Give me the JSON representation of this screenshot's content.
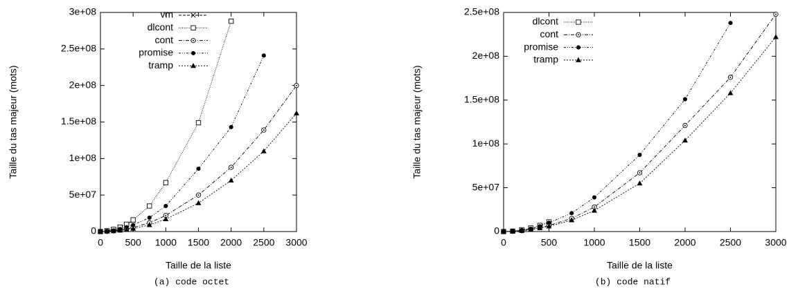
{
  "chart_data": [
    {
      "type": "line",
      "caption": "(a) code octet",
      "x_label": "Taille de la liste",
      "y_label": "Taille du tas majeur (mots)",
      "x": [
        0,
        100,
        200,
        300,
        400,
        500,
        750,
        1000,
        1500,
        2000,
        2500,
        3000
      ],
      "xlim": [
        0,
        3000
      ],
      "xticks": [
        0,
        500,
        1000,
        1500,
        2000,
        2500,
        3000
      ],
      "ylim": [
        0,
        300000000
      ],
      "yticks": [
        0,
        {
          "value": 50000000,
          "label": "5e+07"
        },
        {
          "value": 100000000,
          "label": "1e+08"
        },
        {
          "value": 150000000,
          "label": "1.5e+08"
        },
        {
          "value": 200000000,
          "label": "2e+08"
        },
        {
          "value": 250000000,
          "label": "2.5e+08"
        },
        {
          "value": 300000000,
          "label": "3e+08"
        }
      ],
      "legend": "upper left",
      "series": [
        {
          "name": "vm",
          "color": "#000000",
          "marker": "x",
          "values": [
            0,
            1000000,
            3000000,
            6000000,
            10000000,
            15000000,
            null,
            null,
            null,
            null,
            null,
            null
          ]
        },
        {
          "name": "dlcont",
          "color": "#000000",
          "marker": "square",
          "values": [
            0,
            1000000,
            3000000,
            6000000,
            10000000,
            16000000,
            35000000,
            67000000,
            149000000,
            288000000,
            null,
            null
          ]
        },
        {
          "name": "cont",
          "color": "#000000",
          "marker": "dotcircle",
          "values": [
            0,
            200000,
            900000,
            2000000,
            3500000,
            5500000,
            12000000,
            22000000,
            50000000,
            88000000,
            139000000,
            200000000
          ]
        },
        {
          "name": "promise",
          "color": "#000000",
          "marker": "dot",
          "values": [
            0,
            400000,
            1500000,
            3500000,
            6000000,
            9000000,
            19000000,
            35000000,
            86000000,
            143000000,
            241000000,
            null
          ]
        },
        {
          "name": "tramp",
          "color": "#000000",
          "marker": "triangle",
          "values": [
            0,
            200000,
            700000,
            1500000,
            2600000,
            4000000,
            9000000,
            17000000,
            39000000,
            70000000,
            110000000,
            162000000
          ]
        }
      ]
    },
    {
      "type": "line",
      "caption": "(b) code natif",
      "x_label": "Taille de la liste",
      "y_label": "Taille du tas majeur (mots)",
      "x": [
        0,
        100,
        200,
        300,
        400,
        500,
        750,
        1000,
        1500,
        2000,
        2500,
        3000
      ],
      "xlim": [
        0,
        3000
      ],
      "xticks": [
        0,
        500,
        1000,
        1500,
        2000,
        2500,
        3000
      ],
      "ylim": [
        0,
        250000000
      ],
      "yticks": [
        0,
        {
          "value": 50000000,
          "label": "5e+07"
        },
        {
          "value": 100000000,
          "label": "1e+08"
        },
        {
          "value": 150000000,
          "label": "1.5e+08"
        },
        {
          "value": 200000000,
          "label": "2e+08"
        },
        {
          "value": 250000000,
          "label": "2.5e+08"
        }
      ],
      "legend": "upper left",
      "series": [
        {
          "name": "dlcont",
          "color": "#000000",
          "marker": "square",
          "values": [
            0,
            500000,
            2000000,
            4000000,
            7000000,
            11000000,
            null,
            null,
            null,
            null,
            null,
            null
          ]
        },
        {
          "name": "cont",
          "color": "#000000",
          "marker": "dotcircle",
          "values": [
            0,
            300000,
            1000000,
            2500000,
            4500000,
            7000000,
            15000000,
            28000000,
            67000000,
            121000000,
            176000000,
            248000000
          ]
        },
        {
          "name": "promise",
          "color": "#000000",
          "marker": "dot",
          "values": [
            0,
            400000,
            1500000,
            3000000,
            6000000,
            10000000,
            21000000,
            39000000,
            87500000,
            151000000,
            238000000,
            null
          ]
        },
        {
          "name": "tramp",
          "color": "#000000",
          "marker": "triangle",
          "values": [
            0,
            200000,
            900000,
            2000000,
            4000000,
            6000000,
            13000000,
            24000000,
            55000000,
            104000000,
            158000000,
            222000000
          ]
        }
      ]
    }
  ]
}
